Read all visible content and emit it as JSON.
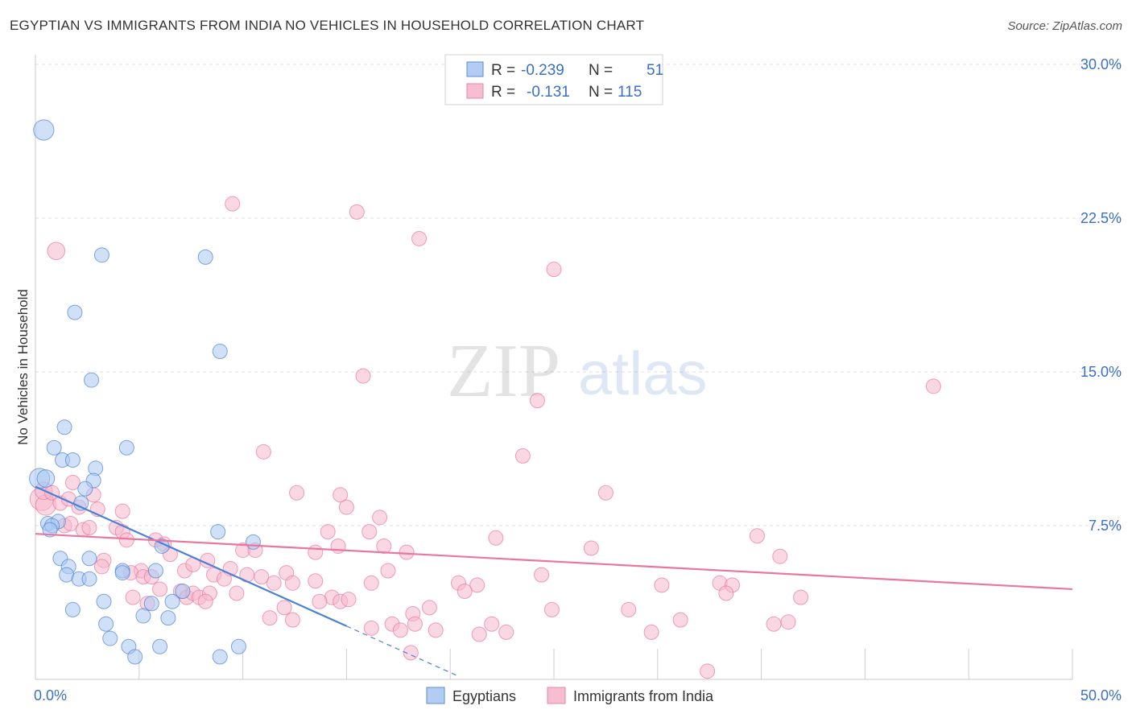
{
  "title": "EGYPTIAN VS IMMIGRANTS FROM INDIA NO VEHICLES IN HOUSEHOLD CORRELATION CHART",
  "source": "Source: ZipAtlas.com",
  "watermark": {
    "zip": "ZIP",
    "atlas": "atlas"
  },
  "legend_box": {
    "rows": [
      {
        "series": "Egyptians",
        "r_label": "R =",
        "r_value": "-0.239",
        "n_label": "N =",
        "n_value": "51"
      },
      {
        "series": "Immigrants from India",
        "r_label": "R =",
        "r_value": "-0.131",
        "n_label": "N =",
        "n_value": "115"
      }
    ]
  },
  "chart_data": {
    "type": "scatter",
    "title": "EGYPTIAN VS IMMIGRANTS FROM INDIA NO VEHICLES IN HOUSEHOLD CORRELATION CHART",
    "xlabel": "",
    "ylabel": "No Vehicles in Household",
    "xlim": [
      0,
      50
    ],
    "ylim": [
      0,
      30
    ],
    "x_tick_labels": [
      "0.0%",
      "50.0%"
    ],
    "y_ticks": [
      7.5,
      15,
      22.5,
      30
    ],
    "y_tick_labels": [
      "7.5%",
      "15.0%",
      "22.5%",
      "30.0%"
    ],
    "grid": true,
    "legend": "bottom-center",
    "colors": {
      "egyptians": "#4a80d8",
      "egyptians_fill": "#aac8f0",
      "india": "#e8779b",
      "india_fill": "#f6b8cc",
      "axis_text": "#3a6fc4"
    },
    "series": [
      {
        "name": "Egyptians",
        "color": "#4a80d8",
        "trend": {
          "x0": 0,
          "y0": 9.4,
          "x1": 15,
          "y1": 2.6,
          "dashed_to_x": 20.3
        },
        "points": [
          [
            0.4,
            26.8,
            1.4
          ],
          [
            3.2,
            20.7,
            1
          ],
          [
            8.2,
            20.6,
            1
          ],
          [
            1.9,
            17.9,
            1
          ],
          [
            8.9,
            16.0,
            1
          ],
          [
            2.7,
            14.6,
            1
          ],
          [
            1.4,
            12.3,
            1
          ],
          [
            4.4,
            11.3,
            1
          ],
          [
            0.9,
            11.3,
            1
          ],
          [
            1.3,
            10.7,
            1
          ],
          [
            1.8,
            10.7,
            1
          ],
          [
            2.9,
            10.3,
            1
          ],
          [
            0.2,
            9.8,
            1.4
          ],
          [
            0.5,
            9.8,
            1.2
          ],
          [
            2.8,
            9.7,
            1
          ],
          [
            2.4,
            9.3,
            1
          ],
          [
            2.2,
            8.6,
            1
          ],
          [
            0.6,
            7.6,
            1
          ],
          [
            1.1,
            7.7,
            1
          ],
          [
            0.8,
            7.5,
            1
          ],
          [
            0.7,
            7.3,
            1
          ],
          [
            8.8,
            7.2,
            1
          ],
          [
            10.5,
            6.7,
            1
          ],
          [
            4.2,
            5.3,
            1
          ],
          [
            6.1,
            6.5,
            1
          ],
          [
            1.2,
            5.9,
            1
          ],
          [
            2.6,
            5.9,
            1
          ],
          [
            1.6,
            5.5,
            1
          ],
          [
            1.5,
            5.1,
            1
          ],
          [
            2.1,
            4.9,
            1
          ],
          [
            2.6,
            4.9,
            1
          ],
          [
            4.2,
            5.2,
            1
          ],
          [
            5.8,
            5.3,
            1
          ],
          [
            7.1,
            4.3,
            1
          ],
          [
            3.3,
            3.8,
            1
          ],
          [
            5.6,
            3.7,
            1
          ],
          [
            6.6,
            3.8,
            1
          ],
          [
            1.8,
            3.4,
            1
          ],
          [
            5.2,
            3.1,
            1
          ],
          [
            6.4,
            3.0,
            1
          ],
          [
            3.4,
            2.7,
            1
          ],
          [
            3.6,
            2.0,
            1
          ],
          [
            4.5,
            1.6,
            1
          ],
          [
            6.0,
            1.6,
            1
          ],
          [
            9.8,
            1.6,
            1
          ],
          [
            4.8,
            1.1,
            1
          ],
          [
            8.9,
            1.1,
            1
          ]
        ]
      },
      {
        "name": "Immigrants from India",
        "color": "#e8779b",
        "trend": {
          "x0": 0,
          "y0": 7.1,
          "x1": 50,
          "y1": 4.4
        },
        "points": [
          [
            9.5,
            23.2,
            1
          ],
          [
            15.5,
            22.8,
            1
          ],
          [
            18.5,
            21.5,
            1
          ],
          [
            1.0,
            20.9,
            1.2
          ],
          [
            25.0,
            20.0,
            1
          ],
          [
            15.8,
            14.8,
            1
          ],
          [
            43.3,
            14.3,
            1
          ],
          [
            24.2,
            13.6,
            1
          ],
          [
            23.5,
            10.9,
            1
          ],
          [
            11.0,
            11.1,
            1
          ],
          [
            0.3,
            8.8,
            1.6
          ],
          [
            0.5,
            8.5,
            1.4
          ],
          [
            0.4,
            9.2,
            1.2
          ],
          [
            0.8,
            9.1,
            1
          ],
          [
            1.2,
            8.6,
            1
          ],
          [
            1.6,
            8.8,
            1
          ],
          [
            1.8,
            9.6,
            1
          ],
          [
            2.8,
            9.0,
            1
          ],
          [
            2.1,
            8.4,
            1
          ],
          [
            3.0,
            8.3,
            1
          ],
          [
            4.2,
            8.2,
            1
          ],
          [
            12.6,
            9.1,
            1
          ],
          [
            14.7,
            9.0,
            1
          ],
          [
            15.0,
            8.4,
            1
          ],
          [
            27.5,
            9.1,
            1
          ],
          [
            1.4,
            7.5,
            1
          ],
          [
            1.7,
            7.6,
            1
          ],
          [
            2.3,
            7.3,
            1
          ],
          [
            2.6,
            7.4,
            1
          ],
          [
            3.9,
            7.4,
            1
          ],
          [
            4.2,
            7.2,
            1
          ],
          [
            16.6,
            7.9,
            1
          ],
          [
            14.1,
            7.2,
            1
          ],
          [
            16.1,
            7.2,
            1
          ],
          [
            22.2,
            6.9,
            1
          ],
          [
            34.8,
            7.0,
            1
          ],
          [
            4.4,
            6.8,
            1
          ],
          [
            5.8,
            6.8,
            1
          ],
          [
            6.2,
            6.6,
            1
          ],
          [
            10.0,
            6.3,
            1
          ],
          [
            10.6,
            6.3,
            1
          ],
          [
            13.5,
            6.2,
            1
          ],
          [
            14.6,
            6.5,
            1
          ],
          [
            16.8,
            6.5,
            1
          ],
          [
            17.9,
            6.2,
            1
          ],
          [
            26.8,
            6.4,
            1
          ],
          [
            35.9,
            6.0,
            1
          ],
          [
            3.3,
            5.8,
            1
          ],
          [
            5.1,
            5.3,
            1
          ],
          [
            6.5,
            6.1,
            1
          ],
          [
            7.2,
            5.3,
            1
          ],
          [
            7.6,
            5.6,
            1
          ],
          [
            8.3,
            5.8,
            1
          ],
          [
            9.4,
            5.4,
            1
          ],
          [
            3.2,
            5.5,
            1
          ],
          [
            4.6,
            5.2,
            1
          ],
          [
            5.2,
            5.0,
            1
          ],
          [
            5.6,
            5.0,
            1
          ],
          [
            8.6,
            5.1,
            1
          ],
          [
            9.1,
            4.9,
            1
          ],
          [
            10.2,
            5.1,
            1
          ],
          [
            10.9,
            5.0,
            1
          ],
          [
            12.1,
            5.2,
            1
          ],
          [
            13.5,
            4.8,
            1
          ],
          [
            12.4,
            4.7,
            1
          ],
          [
            11.5,
            4.7,
            1
          ],
          [
            16.2,
            4.7,
            1
          ],
          [
            17.0,
            5.3,
            1
          ],
          [
            24.4,
            5.1,
            1
          ],
          [
            20.4,
            4.7,
            1
          ],
          [
            21.3,
            4.6,
            1
          ],
          [
            30.2,
            4.6,
            1
          ],
          [
            33.0,
            4.7,
            1
          ],
          [
            33.6,
            4.6,
            1
          ],
          [
            6.0,
            4.4,
            1
          ],
          [
            7.0,
            4.3,
            1
          ],
          [
            7.3,
            4.0,
            1
          ],
          [
            7.6,
            4.2,
            1
          ],
          [
            7.9,
            4.0,
            1
          ],
          [
            8.4,
            4.2,
            1
          ],
          [
            9.7,
            4.2,
            1
          ],
          [
            14.3,
            4.0,
            1
          ],
          [
            14.7,
            3.8,
            1
          ],
          [
            15.1,
            3.9,
            1
          ],
          [
            4.7,
            4.0,
            1
          ],
          [
            5.4,
            3.7,
            1
          ],
          [
            8.2,
            3.8,
            1
          ],
          [
            20.7,
            4.3,
            1
          ],
          [
            33.3,
            4.2,
            1
          ],
          [
            36.9,
            4.0,
            1
          ],
          [
            12.0,
            3.5,
            1
          ],
          [
            13.7,
            3.8,
            1
          ],
          [
            19.0,
            3.5,
            1
          ],
          [
            24.9,
            3.4,
            1
          ],
          [
            28.6,
            3.4,
            1
          ],
          [
            18.2,
            3.2,
            1
          ],
          [
            11.3,
            3.0,
            1
          ],
          [
            12.4,
            2.9,
            1
          ],
          [
            17.2,
            2.7,
            1
          ],
          [
            18.3,
            2.7,
            1
          ],
          [
            22.0,
            2.7,
            1
          ],
          [
            31.1,
            2.9,
            1
          ],
          [
            35.6,
            2.7,
            1
          ],
          [
            36.3,
            2.8,
            1
          ],
          [
            16.2,
            2.5,
            1
          ],
          [
            17.6,
            2.4,
            1
          ],
          [
            19.3,
            2.4,
            1
          ],
          [
            21.4,
            2.2,
            1
          ],
          [
            22.7,
            2.3,
            1
          ],
          [
            29.7,
            2.3,
            1
          ],
          [
            18.1,
            1.3,
            1
          ],
          [
            32.4,
            0.4,
            1
          ]
        ]
      }
    ]
  }
}
